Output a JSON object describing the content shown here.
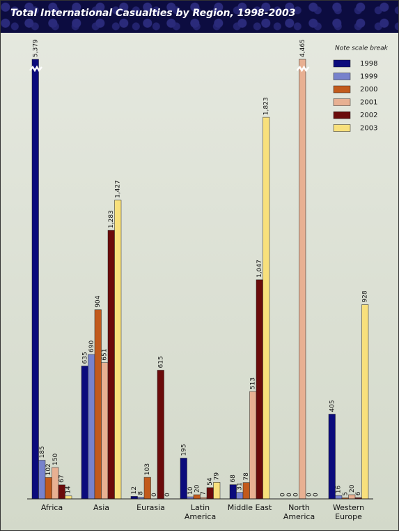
{
  "chart_data": {
    "type": "bar",
    "title": "Total International Casualties by Region, 1998-2003",
    "annotation": "Note scale break",
    "categories": [
      "Africa",
      "Asia",
      "Eurasia",
      "Latin America",
      "Middle East",
      "North America",
      "Western Europe"
    ],
    "series": [
      {
        "name": "1998",
        "color": "#0b0b7c",
        "values": [
          5379,
          635,
          12,
          195,
          68,
          0,
          405
        ],
        "value_labels": [
          "5,379",
          "635",
          "12",
          "195",
          "68",
          "0",
          "405"
        ]
      },
      {
        "name": "1999",
        "color": "#7782cc",
        "values": [
          185,
          690,
          8,
          10,
          31,
          0,
          16
        ],
        "value_labels": [
          "185",
          "690",
          "8",
          "10",
          "31",
          "0",
          "16"
        ]
      },
      {
        "name": "2000",
        "color": "#c25a1c",
        "values": [
          102,
          904,
          103,
          20,
          78,
          0,
          5
        ],
        "value_labels": [
          "102",
          "904",
          "103",
          "20",
          "78",
          "0",
          "5"
        ]
      },
      {
        "name": "2001",
        "color": "#e8b092",
        "values": [
          150,
          651,
          0,
          7,
          513,
          4465,
          20
        ],
        "value_labels": [
          "150",
          "651",
          "0",
          "7",
          "513",
          "4,465",
          "20"
        ]
      },
      {
        "name": "2002",
        "color": "#6b0b0b",
        "values": [
          67,
          1283,
          615,
          54,
          1047,
          0,
          6
        ],
        "value_labels": [
          "67",
          "1,283",
          "615",
          "54",
          "1,047",
          "0",
          "6"
        ]
      },
      {
        "name": "2003",
        "color": "#f8e07c",
        "values": [
          14,
          1427,
          0,
          79,
          1823,
          0,
          928
        ],
        "value_labels": [
          "14",
          "1,427",
          "0",
          "79",
          "1,823",
          "0",
          "928"
        ]
      }
    ],
    "ylim": [
      0,
      2100
    ],
    "scale_break": true,
    "legend": "upper-right"
  }
}
